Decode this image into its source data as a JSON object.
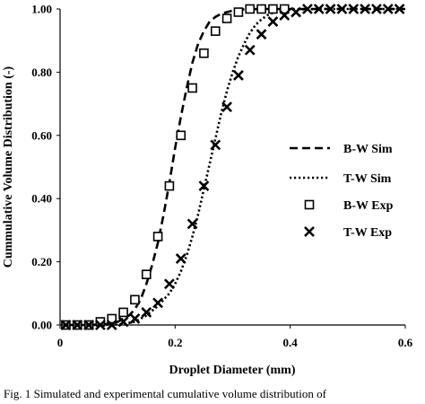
{
  "chart_data": {
    "type": "line",
    "xlabel": "Droplet Diameter (mm)",
    "ylabel": "Cummulative Volume Distribution (-)",
    "xlim": [
      0,
      0.6
    ],
    "ylim": [
      0,
      1.0
    ],
    "x_ticks": [
      "0",
      "0.2",
      "0.4",
      "0.6"
    ],
    "y_ticks": [
      "0.00",
      "0.20",
      "0.40",
      "0.60",
      "0.80",
      "1.00"
    ],
    "grid": false,
    "legend_position": "center-right",
    "series": [
      {
        "name": "B-W Sim",
        "style": "dashed-line",
        "x": [
          0.01,
          0.05,
          0.08,
          0.1,
          0.12,
          0.13,
          0.14,
          0.15,
          0.16,
          0.17,
          0.18,
          0.19,
          0.2,
          0.21,
          0.22,
          0.23,
          0.24,
          0.25,
          0.26,
          0.27,
          0.28,
          0.3,
          0.32,
          0.35,
          0.6
        ],
        "y": [
          0.0,
          0.0,
          0.003,
          0.01,
          0.03,
          0.05,
          0.08,
          0.13,
          0.19,
          0.26,
          0.35,
          0.45,
          0.56,
          0.66,
          0.75,
          0.83,
          0.89,
          0.93,
          0.96,
          0.975,
          0.985,
          0.995,
          0.999,
          1.0,
          1.0
        ]
      },
      {
        "name": "T-W Sim",
        "style": "dotted-line",
        "x": [
          0.01,
          0.08,
          0.11,
          0.13,
          0.15,
          0.17,
          0.19,
          0.2,
          0.21,
          0.22,
          0.23,
          0.24,
          0.25,
          0.26,
          0.27,
          0.28,
          0.29,
          0.3,
          0.31,
          0.32,
          0.33,
          0.34,
          0.35,
          0.36,
          0.37,
          0.38,
          0.4,
          0.45,
          0.6
        ],
        "y": [
          0.0,
          0.0,
          0.003,
          0.01,
          0.03,
          0.06,
          0.1,
          0.13,
          0.17,
          0.22,
          0.28,
          0.35,
          0.43,
          0.51,
          0.59,
          0.67,
          0.74,
          0.8,
          0.85,
          0.89,
          0.925,
          0.95,
          0.967,
          0.98,
          0.988,
          0.993,
          0.998,
          1.0,
          1.0
        ]
      },
      {
        "name": "B-W Exp",
        "style": "open-square-marker",
        "x": [
          0.01,
          0.03,
          0.05,
          0.07,
          0.09,
          0.11,
          0.13,
          0.15,
          0.17,
          0.19,
          0.21,
          0.23,
          0.25,
          0.27,
          0.29,
          0.31,
          0.33,
          0.35,
          0.37,
          0.39
        ],
        "y": [
          0.0,
          0.0,
          0.0,
          0.01,
          0.02,
          0.04,
          0.08,
          0.16,
          0.28,
          0.44,
          0.6,
          0.75,
          0.86,
          0.93,
          0.97,
          0.99,
          1.0,
          1.0,
          1.0,
          1.0
        ]
      },
      {
        "name": "T-W Exp",
        "style": "x-marker",
        "x": [
          0.01,
          0.03,
          0.05,
          0.07,
          0.09,
          0.11,
          0.13,
          0.15,
          0.17,
          0.19,
          0.21,
          0.23,
          0.25,
          0.27,
          0.29,
          0.31,
          0.33,
          0.35,
          0.37,
          0.39,
          0.41,
          0.43,
          0.45,
          0.47,
          0.49,
          0.51,
          0.53,
          0.55,
          0.57,
          0.59
        ],
        "y": [
          0.0,
          0.0,
          0.0,
          0.0,
          0.0,
          0.01,
          0.02,
          0.04,
          0.07,
          0.13,
          0.21,
          0.32,
          0.44,
          0.57,
          0.69,
          0.79,
          0.87,
          0.92,
          0.96,
          0.98,
          0.99,
          1.0,
          1.0,
          1.0,
          1.0,
          1.0,
          1.0,
          1.0,
          1.0,
          1.0
        ]
      }
    ]
  },
  "caption": "Fig. 1 Simulated and experimental cumulative volume distribution of"
}
